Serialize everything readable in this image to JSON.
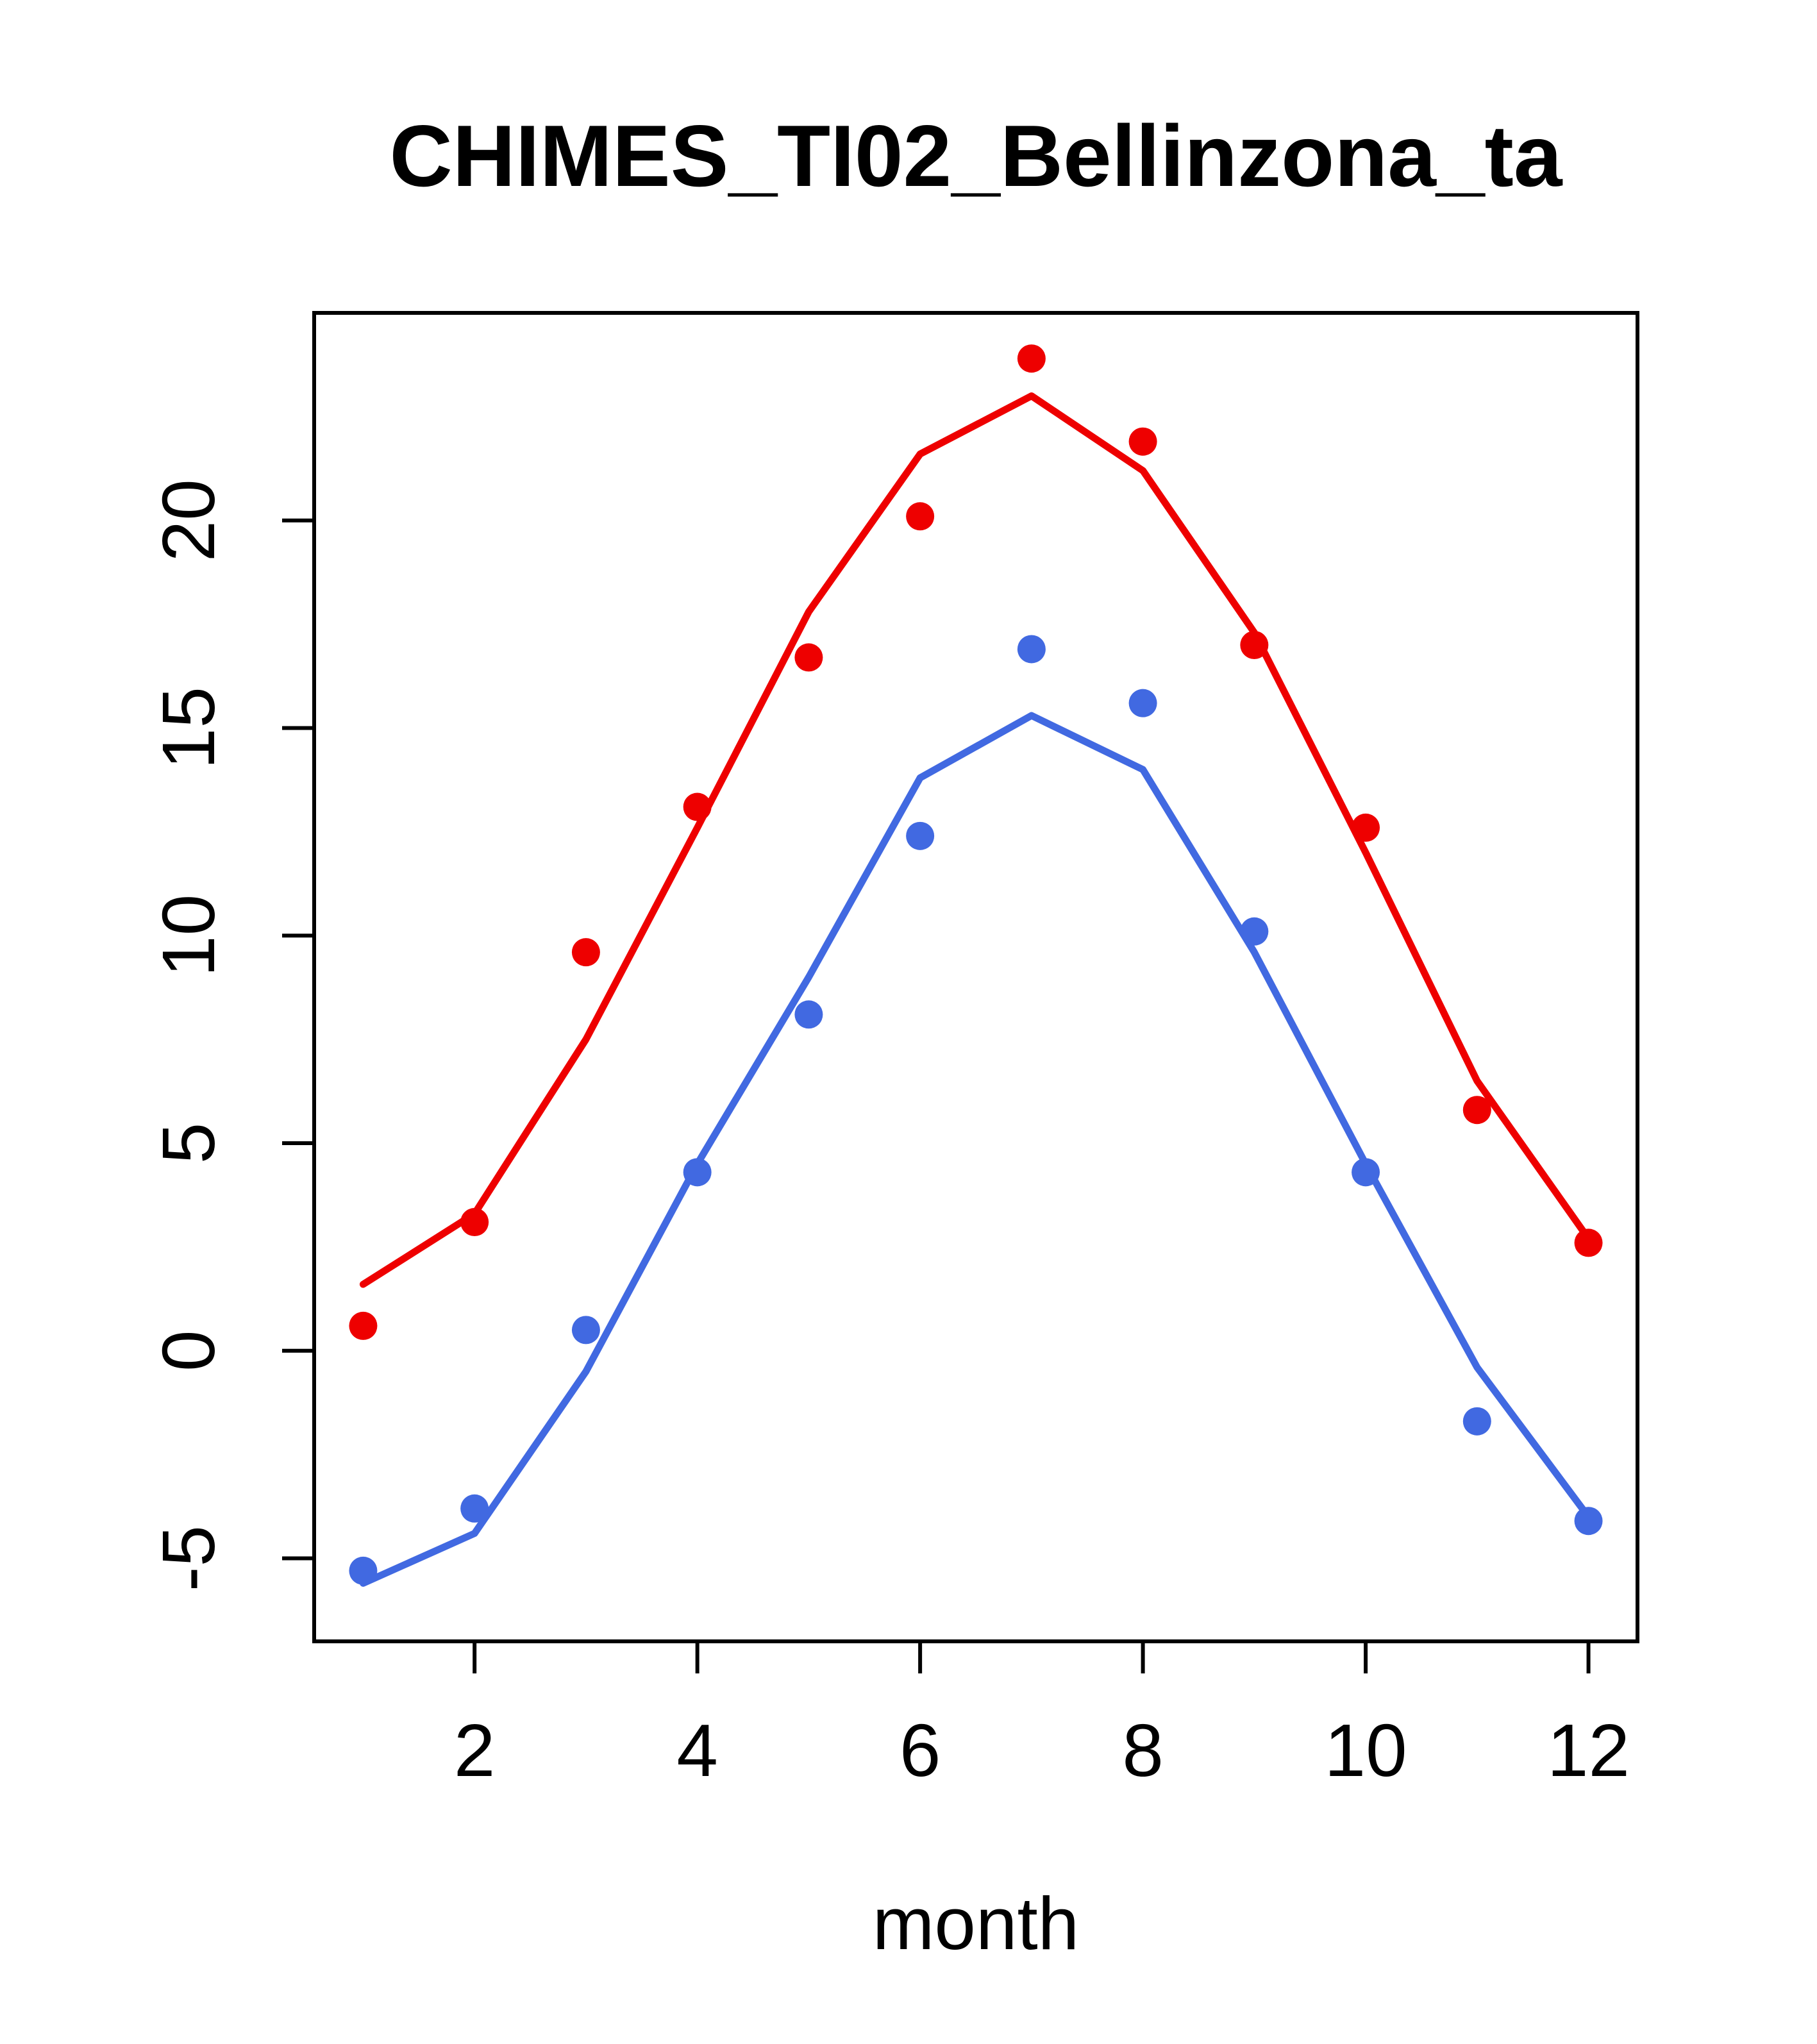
{
  "title": "CHIMES_TI02_Bellinzona_ta",
  "xlabel": "month",
  "colors": {
    "series_red": "#ee0000",
    "series_blue": "#4169e1",
    "axis": "#000000",
    "background": "#ffffff"
  },
  "chart_data": {
    "type": "line",
    "title": "CHIMES_TI02_Bellinzona_ta",
    "xlabel": "month",
    "ylabel": "",
    "x": [
      1,
      2,
      3,
      4,
      5,
      6,
      7,
      8,
      9,
      10,
      11,
      12
    ],
    "xticks": [
      2,
      4,
      6,
      8,
      10,
      12
    ],
    "yticks": [
      -5,
      0,
      5,
      10,
      15,
      20
    ],
    "xlim": [
      0.56,
      12.44
    ],
    "ylim": [
      -7.0,
      25.0
    ],
    "grid": false,
    "legend": "none",
    "series": [
      {
        "name": "red-line",
        "style": "line",
        "color": "#ee0000",
        "values": [
          1.6,
          3.3,
          7.5,
          12.6,
          17.8,
          21.6,
          23.0,
          21.2,
          17.3,
          12.0,
          6.5,
          2.7
        ]
      },
      {
        "name": "blue-line",
        "style": "line",
        "color": "#4169e1",
        "values": [
          -5.6,
          -4.4,
          -0.5,
          4.5,
          9.0,
          13.8,
          15.3,
          14.0,
          9.6,
          4.5,
          -0.4,
          -4.0
        ]
      },
      {
        "name": "red-points",
        "style": "points",
        "color": "#ee0000",
        "values": [
          0.6,
          3.1,
          9.6,
          13.1,
          16.7,
          20.1,
          23.9,
          21.9,
          17.0,
          12.6,
          5.8,
          2.6
        ]
      },
      {
        "name": "blue-points",
        "style": "points",
        "color": "#4169e1",
        "values": [
          -5.3,
          -3.8,
          0.5,
          4.3,
          8.1,
          12.4,
          16.9,
          15.6,
          10.1,
          4.3,
          -1.7,
          -4.1
        ]
      }
    ]
  }
}
